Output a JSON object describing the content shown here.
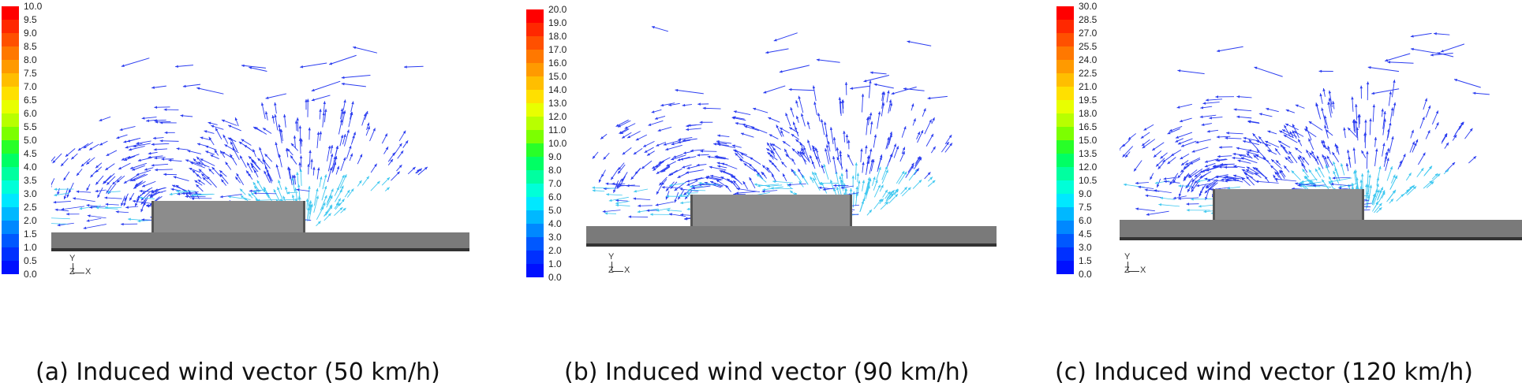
{
  "panels": [
    {
      "caption": "(a) Induced wind vector (50 km/h)",
      "scale_ticks": [
        "10.0",
        "9.5",
        "9.0",
        "8.5",
        "8.0",
        "7.5",
        "7.0",
        "6.5",
        "6.0",
        "5.5",
        "5.0",
        "4.5",
        "4.0",
        "3.5",
        "3.0",
        "2.5",
        "2.0",
        "1.5",
        "1.0",
        "0.5",
        "0.0"
      ],
      "axis": {
        "y": "Y",
        "z": "Z",
        "x": "X"
      }
    },
    {
      "caption": "(b) Induced wind vector (90 km/h)",
      "scale_ticks": [
        "20.0",
        "19.0",
        "18.0",
        "17.0",
        "16.0",
        "15.0",
        "14.0",
        "13.0",
        "12.0",
        "11.0",
        "10.0",
        "9.0",
        "8.0",
        "7.0",
        "6.0",
        "5.0",
        "4.0",
        "3.0",
        "2.0",
        "1.0",
        "0.0"
      ],
      "axis": {
        "y": "Y",
        "z": "Z",
        "x": "X"
      }
    },
    {
      "caption": "(c) Induced wind vector (120 km/h)",
      "scale_ticks": [
        "30.0",
        "28.5",
        "27.0",
        "25.5",
        "24.0",
        "22.5",
        "21.0",
        "19.5",
        "18.0",
        "16.5",
        "15.0",
        "13.5",
        "12.0",
        "10.5",
        "9.0",
        "7.5",
        "6.0",
        "4.5",
        "3.0",
        "1.5",
        "0.0"
      ],
      "axis": {
        "y": "Y",
        "z": "Z",
        "x": "X"
      }
    }
  ],
  "colors": {
    "scale": [
      "#ff0000",
      "#ff2800",
      "#ff5000",
      "#ff7800",
      "#ff9a00",
      "#ffbe00",
      "#ffe000",
      "#e8ff00",
      "#b8ff00",
      "#7cff00",
      "#28ff28",
      "#00ff64",
      "#00ffa0",
      "#00ffd8",
      "#00e8ff",
      "#00b8ff",
      "#0088ff",
      "#0058ff",
      "#0030ff",
      "#0010ff"
    ],
    "vector": "#2a3cf0",
    "vector_light": "#3fc8f0",
    "ground": "#7a7a7a",
    "block": "#8c8c8c"
  }
}
